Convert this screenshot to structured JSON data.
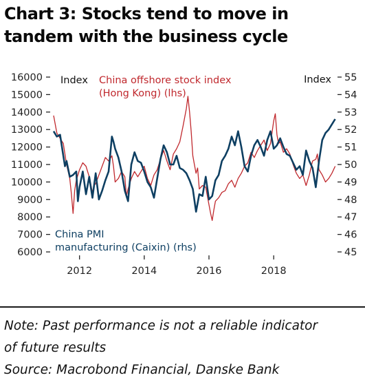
{
  "title_lines": [
    "Chart 3: Stocks tend to move in",
    "tandem with the business cycle"
  ],
  "notes": [
    "Note: Past performance is not a reliable indicator",
    "of future results",
    "Source: Macrobond Financial, Danske Bank"
  ],
  "colors": {
    "stock": "#c0282d",
    "pmi": "#0e3f62",
    "axis": "#222222",
    "divider": "#1a1a1a"
  },
  "chart_data": {
    "type": "line",
    "title": "Chart 3: Stocks tend to move in tandem with the business cycle",
    "left_axis": {
      "unit_label": "Index",
      "ylim": [
        6000,
        16000
      ],
      "ticks": [
        6000,
        7000,
        8000,
        9000,
        10000,
        11000,
        12000,
        13000,
        14000,
        15000,
        16000
      ],
      "tick_labels": [
        "6000",
        "7000",
        "8000",
        "9000",
        "10000",
        "11000",
        "12000",
        "13000",
        "14000",
        "15000",
        "16000"
      ]
    },
    "right_axis": {
      "unit_label": "Index",
      "ylim": [
        45,
        55
      ],
      "ticks": [
        45,
        46,
        47,
        48,
        49,
        50,
        51,
        52,
        53,
        54,
        55
      ],
      "tick_labels": [
        "45",
        "46",
        "47",
        "48",
        "49",
        "50",
        "51",
        "52",
        "53",
        "54",
        "55"
      ]
    },
    "x_axis": {
      "xlim": [
        2011.2,
        2019.95
      ],
      "ticks": [
        2012,
        2014,
        2016,
        2018
      ],
      "tick_labels": [
        "2012",
        "2014",
        "2016",
        "2018"
      ]
    },
    "grid": false,
    "series": [
      {
        "name": "China offshore stock index (Hong Kong) (lhs)",
        "legend_lines": [
          "China offshore stock index",
          "(Hong Kong) (lhs)"
        ],
        "axis": "left",
        "x": [
          2011.2,
          2011.3,
          2011.4,
          2011.5,
          2011.6,
          2011.7,
          2011.75,
          2011.8,
          2011.85,
          2011.9,
          2012.0,
          2012.1,
          2012.2,
          2012.3,
          2012.4,
          2012.45,
          2012.5,
          2012.6,
          2012.7,
          2012.8,
          2012.9,
          2013.0,
          2013.05,
          2013.1,
          2013.2,
          2013.3,
          2013.4,
          2013.45,
          2013.5,
          2013.6,
          2013.7,
          2013.8,
          2013.9,
          2014.0,
          2014.1,
          2014.2,
          2014.25,
          2014.3,
          2014.4,
          2014.5,
          2014.6,
          2014.7,
          2014.8,
          2014.9,
          2015.0,
          2015.1,
          2015.2,
          2015.3,
          2015.35,
          2015.4,
          2015.45,
          2015.5,
          2015.55,
          2015.6,
          2015.65,
          2015.7,
          2015.8,
          2015.9,
          2016.0,
          2016.05,
          2016.1,
          2016.15,
          2016.2,
          2016.3,
          2016.4,
          2016.5,
          2016.6,
          2016.7,
          2016.8,
          2016.9,
          2017.0,
          2017.1,
          2017.2,
          2017.3,
          2017.4,
          2017.5,
          2017.6,
          2017.7,
          2017.8,
          2017.9,
          2018.0,
          2018.05,
          2018.1,
          2018.15,
          2018.2,
          2018.3,
          2018.4,
          2018.5,
          2018.6,
          2018.7,
          2018.8,
          2018.9,
          2019.0,
          2019.1,
          2019.2,
          2019.3,
          2019.35,
          2019.4,
          2019.5,
          2019.6,
          2019.7,
          2019.8,
          2019.9
        ],
        "y": [
          13800,
          12800,
          12500,
          12200,
          11000,
          10200,
          9300,
          8200,
          9500,
          10100,
          10700,
          11100,
          10900,
          10300,
          9400,
          9800,
          9900,
          10400,
          10900,
          11400,
          11200,
          11500,
          10900,
          10000,
          10200,
          10600,
          10300,
          9200,
          9600,
          10200,
          10600,
          10300,
          10600,
          10900,
          10200,
          9800,
          10100,
          10400,
          10700,
          11300,
          11800,
          11200,
          10700,
          11600,
          11900,
          12300,
          13200,
          14200,
          14900,
          14000,
          12900,
          11500,
          11000,
          10500,
          10800,
          9600,
          9800,
          9700,
          8700,
          8200,
          7800,
          8400,
          8900,
          9100,
          9400,
          9500,
          9900,
          10100,
          9700,
          10200,
          10500,
          10900,
          11100,
          11700,
          11400,
          11800,
          12100,
          12400,
          11800,
          12200,
          13500,
          13900,
          12700,
          12200,
          12300,
          11700,
          11900,
          11600,
          11000,
          10500,
          10200,
          10400,
          9800,
          10400,
          11200,
          11300,
          11600,
          10700,
          10400,
          10000,
          10200,
          10500,
          10900
        ]
      },
      {
        "name": "China PMI manufacturing (Caixin) (rhs)",
        "legend_lines": [
          "China PMI",
          "manufacturing (Caixin) (rhs)"
        ],
        "axis": "right",
        "x": [
          2011.2,
          2011.3,
          2011.4,
          2011.5,
          2011.55,
          2011.6,
          2011.7,
          2011.8,
          2011.9,
          2011.95,
          2012.0,
          2012.1,
          2012.2,
          2012.3,
          2012.4,
          2012.5,
          2012.6,
          2012.7,
          2012.8,
          2012.9,
          2013.0,
          2013.05,
          2013.1,
          2013.2,
          2013.3,
          2013.4,
          2013.5,
          2013.6,
          2013.7,
          2013.8,
          2013.9,
          2014.0,
          2014.1,
          2014.2,
          2014.3,
          2014.4,
          2014.5,
          2014.6,
          2014.7,
          2014.8,
          2014.9,
          2015.0,
          2015.1,
          2015.2,
          2015.3,
          2015.4,
          2015.5,
          2015.6,
          2015.7,
          2015.8,
          2015.9,
          2016.0,
          2016.1,
          2016.2,
          2016.3,
          2016.4,
          2016.5,
          2016.6,
          2016.7,
          2016.8,
          2016.9,
          2017.0,
          2017.1,
          2017.2,
          2017.3,
          2017.4,
          2017.5,
          2017.6,
          2017.7,
          2017.8,
          2017.9,
          2018.0,
          2018.1,
          2018.2,
          2018.3,
          2018.4,
          2018.5,
          2018.6,
          2018.7,
          2018.8,
          2018.9,
          2019.0,
          2019.1,
          2019.2,
          2019.3,
          2019.4,
          2019.5,
          2019.6,
          2019.7,
          2019.8,
          2019.9
        ],
        "y": [
          51.9,
          51.6,
          51.7,
          50.5,
          49.9,
          50.2,
          49.3,
          49.4,
          49.6,
          47.9,
          48.7,
          49.6,
          48.3,
          49.3,
          48.1,
          49.5,
          48.0,
          48.5,
          49.1,
          49.6,
          51.6,
          51.3,
          50.9,
          50.4,
          49.6,
          48.5,
          47.9,
          50.0,
          50.7,
          50.2,
          50.1,
          49.6,
          49.0,
          48.7,
          48.1,
          49.2,
          50.3,
          51.1,
          50.7,
          50.0,
          50.0,
          50.5,
          49.8,
          49.7,
          49.5,
          49.1,
          48.6,
          47.3,
          48.3,
          48.2,
          49.3,
          48.0,
          48.2,
          49.1,
          49.4,
          50.2,
          50.5,
          50.9,
          51.6,
          51.1,
          51.9,
          51.0,
          49.9,
          49.6,
          50.5,
          51.1,
          51.4,
          51.0,
          50.5,
          51.4,
          51.9,
          50.9,
          51.1,
          51.5,
          51.0,
          50.6,
          50.5,
          50.1,
          49.7,
          49.9,
          49.4,
          50.8,
          50.2,
          49.8,
          48.7,
          50.2,
          51.4,
          51.8,
          52.0,
          52.3,
          52.6
        ]
      }
    ]
  }
}
